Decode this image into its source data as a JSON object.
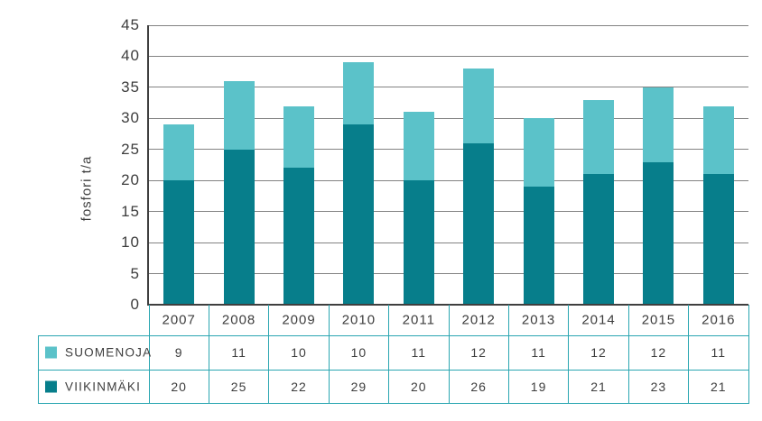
{
  "chart_data": {
    "type": "bar",
    "stacked": true,
    "title": "",
    "xlabel": "",
    "ylabel": "fosfori t/a",
    "ylim": [
      0,
      45
    ],
    "yticks": [
      0,
      5,
      10,
      15,
      20,
      25,
      30,
      35,
      40,
      45
    ],
    "grid": true,
    "legend_position": "table-left",
    "categories": [
      "2007",
      "2008",
      "2009",
      "2010",
      "2011",
      "2012",
      "2013",
      "2014",
      "2015",
      "2016"
    ],
    "series": [
      {
        "name": "SUOMENOJA",
        "color": "#5bc2c9",
        "values": [
          9,
          11,
          10,
          10,
          11,
          12,
          11,
          12,
          12,
          11
        ]
      },
      {
        "name": "VIIKINMÄKI",
        "color": "#077e8b",
        "values": [
          20,
          25,
          22,
          29,
          20,
          26,
          19,
          21,
          23,
          21
        ]
      }
    ],
    "stack_bottom_to_top": [
      "VIIKINMÄKI",
      "SUOMENOJA"
    ],
    "totals": [
      29,
      36,
      32,
      39,
      31,
      38,
      30,
      33,
      35,
      32
    ]
  },
  "colors": {
    "suomenoja": "#5bc2c9",
    "viikinmaki": "#077e8b",
    "table_border": "#2aa6b1",
    "gridline": "#828282",
    "axis": "#3f3f3f",
    "text": "#3d3d3d"
  }
}
